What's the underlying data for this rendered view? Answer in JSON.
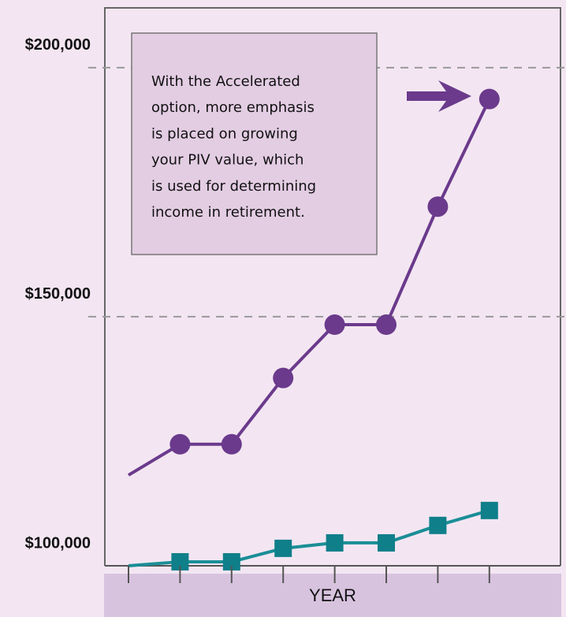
{
  "chart_data": {
    "type": "line",
    "x_label": "YEAR",
    "categories": [
      null,
      null,
      null,
      null,
      null,
      null,
      null,
      null
    ],
    "series": [
      {
        "name": null,
        "color": "#6b3a8c",
        "marker": "circle",
        "values": [
          118200,
          124400,
          124400,
          137700,
          148400,
          148400,
          172100,
          193700
        ]
      },
      {
        "name": null,
        "color": "#1a8e96",
        "marker": "square",
        "values": [
          100000,
          100800,
          100800,
          103500,
          104600,
          104600,
          108100,
          111100
        ]
      }
    ],
    "ylim": [
      100000,
      212000
    ],
    "yticks": [
      {
        "value": 100000,
        "label": "$100,000"
      },
      {
        "value": 150000,
        "label": "$150,000"
      },
      {
        "value": 200000,
        "label": "$200,000"
      }
    ],
    "grid": true,
    "annotation": [
      "With the Accelerated",
      "option, more emphasis",
      "is placed on growing",
      "your PIV value, which",
      "is used for determining",
      "income in retirement."
    ]
  }
}
